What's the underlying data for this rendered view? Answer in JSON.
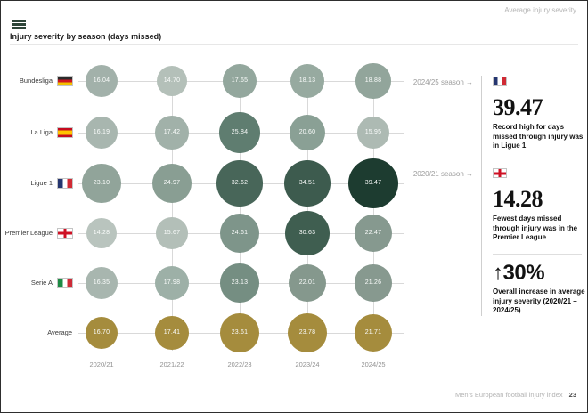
{
  "header": {
    "corner_label": "Average injury severity",
    "title": "Injury severity by season (days missed)"
  },
  "chart_data": {
    "type": "bubble",
    "title": "Injury severity by season (days missed)",
    "xlabel": "Season",
    "ylabel": "League",
    "unit": "days missed",
    "x_categories": [
      "2020/21",
      "2021/22",
      "2022/23",
      "2023/24",
      "2024/25"
    ],
    "rows": [
      {
        "league": "Bundesliga",
        "flag": "de",
        "values": [
          "16.04",
          "14.70",
          "17.65",
          "18.13",
          "18.88"
        ],
        "colors": [
          "#a2b1aa",
          "#b4c0b9",
          "#93a79d",
          "#97aaa0",
          "#92a59b"
        ]
      },
      {
        "league": "La Liga",
        "flag": "es",
        "values": [
          "16.19",
          "17.42",
          "25.84",
          "20.60",
          "15.95"
        ],
        "colors": [
          "#a8b6af",
          "#a1b1a9",
          "#5f7d70",
          "#8aa095",
          "#adbab3"
        ]
      },
      {
        "league": "Ligue 1",
        "flag": "fr",
        "values": [
          "23.10",
          "24.97",
          "32.62",
          "34.51",
          "39.47"
        ],
        "colors": [
          "#91a49a",
          "#899e93",
          "#486659",
          "#3d5b4e",
          "#1d3c30"
        ]
      },
      {
        "league": "Premier League",
        "flag": "en",
        "values": [
          "14.28",
          "15.67",
          "24.61",
          "30.63",
          "22.47"
        ],
        "colors": [
          "#b9c4be",
          "#b3bfb8",
          "#7e958a",
          "#3f5e50",
          "#86998f"
        ]
      },
      {
        "league": "Serie A",
        "flag": "it",
        "values": [
          "16.35",
          "17.98",
          "23.13",
          "22.01",
          "21.26"
        ],
        "colors": [
          "#a8b6af",
          "#9db0a7",
          "#758e82",
          "#85988d",
          "#87998f"
        ]
      },
      {
        "league": "Average",
        "flag": null,
        "values": [
          "16.70",
          "17.41",
          "23.61",
          "23.78",
          "21.71"
        ],
        "colors": [
          "#a58c3d",
          "#a58c3d",
          "#a58c3d",
          "#a58c3d",
          "#a58c3d"
        ]
      }
    ]
  },
  "panel": {
    "blocks": [
      {
        "season_label": "2024/25 season →",
        "flag": "fr",
        "big_number": "39.47",
        "description": "Record high for days missed through injury was in Ligue 1"
      },
      {
        "season_label": "2020/21 season →",
        "flag": "en",
        "big_number": "14.28",
        "description": "Fewest days missed through injury was in the Premier League"
      },
      {
        "big_number": "↑30%",
        "description": "Overall increase in average injury severity (2020/21 – 2024/25)"
      }
    ]
  },
  "footer": {
    "text": "Men's European football injury index",
    "page_number": "23"
  }
}
